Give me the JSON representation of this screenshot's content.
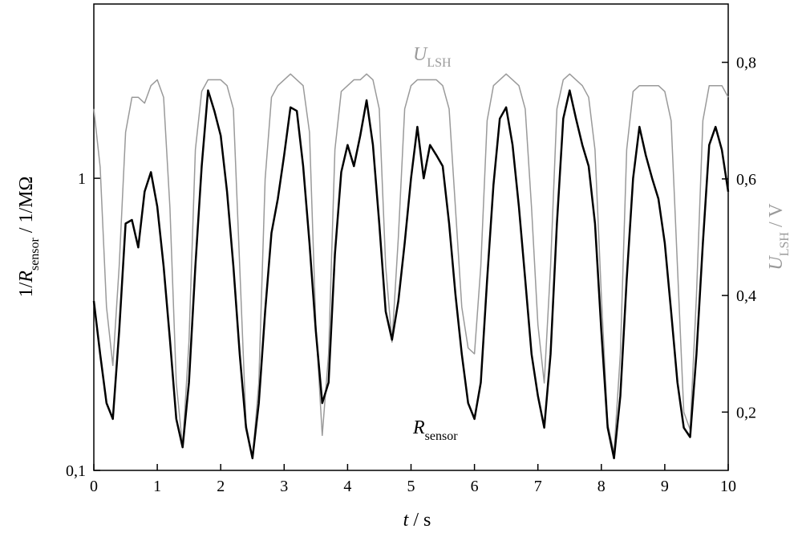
{
  "chart_data": {
    "type": "line",
    "xlabel": [
      "t",
      " / s"
    ],
    "ylabel": [
      "1/",
      "R",
      "sensor",
      " / 1/MΩ"
    ],
    "y2label": [
      "U",
      "LSH",
      " / V"
    ],
    "x": [
      0,
      0.1,
      0.2,
      0.3,
      0.4,
      0.5,
      0.6,
      0.7,
      0.8,
      0.9,
      1,
      1.1,
      1.2,
      1.3,
      1.4,
      1.5,
      1.6,
      1.7,
      1.8,
      1.9,
      2,
      2.1,
      2.2,
      2.3,
      2.4,
      2.5,
      2.6,
      2.7,
      2.8,
      2.9,
      3,
      3.1,
      3.2,
      3.3,
      3.4,
      3.5,
      3.6,
      3.7,
      3.8,
      3.9,
      4,
      4.1,
      4.2,
      4.3,
      4.4,
      4.5,
      4.6,
      4.7,
      4.8,
      4.9,
      5,
      5.1,
      5.2,
      5.3,
      5.4,
      5.5,
      5.6,
      5.7,
      5.8,
      5.9,
      6,
      6.1,
      6.2,
      6.3,
      6.4,
      6.5,
      6.6,
      6.7,
      6.8,
      6.9,
      7,
      7.1,
      7.2,
      7.3,
      7.4,
      7.5,
      7.6,
      7.7,
      7.8,
      7.9,
      8,
      8.1,
      8.2,
      8.3,
      8.4,
      8.5,
      8.6,
      8.7,
      8.8,
      8.9,
      9,
      9.1,
      9.2,
      9.3,
      9.4,
      9.5,
      9.6,
      9.7,
      9.8,
      9.9,
      10
    ],
    "series": [
      {
        "name": "U",
        "name_sub": "LSH",
        "color": "#9a9a9a",
        "axis": "y2",
        "values": [
          0.72,
          0.62,
          0.38,
          0.28,
          0.45,
          0.68,
          0.74,
          0.74,
          0.73,
          0.76,
          0.77,
          0.74,
          0.55,
          0.25,
          0.14,
          0.32,
          0.65,
          0.75,
          0.77,
          0.77,
          0.77,
          0.76,
          0.72,
          0.45,
          0.18,
          0.12,
          0.25,
          0.6,
          0.74,
          0.76,
          0.77,
          0.78,
          0.77,
          0.76,
          0.68,
          0.35,
          0.16,
          0.3,
          0.65,
          0.75,
          0.76,
          0.77,
          0.77,
          0.78,
          0.77,
          0.72,
          0.45,
          0.32,
          0.5,
          0.72,
          0.76,
          0.77,
          0.77,
          0.77,
          0.77,
          0.76,
          0.72,
          0.55,
          0.38,
          0.31,
          0.3,
          0.45,
          0.7,
          0.76,
          0.77,
          0.78,
          0.77,
          0.76,
          0.72,
          0.55,
          0.35,
          0.25,
          0.45,
          0.72,
          0.77,
          0.78,
          0.77,
          0.76,
          0.74,
          0.65,
          0.4,
          0.18,
          0.13,
          0.3,
          0.65,
          0.75,
          0.76,
          0.76,
          0.76,
          0.76,
          0.75,
          0.7,
          0.45,
          0.2,
          0.17,
          0.4,
          0.7,
          0.76,
          0.76,
          0.76,
          0.74
        ]
      },
      {
        "name": "R",
        "name_sub": "sensor",
        "color": "#000000",
        "axis": "y",
        "values": [
          0.38,
          0.25,
          0.17,
          0.15,
          0.3,
          0.7,
          0.72,
          0.58,
          0.9,
          1.05,
          0.8,
          0.5,
          0.28,
          0.15,
          0.12,
          0.2,
          0.5,
          1.1,
          2.0,
          1.7,
          1.4,
          0.9,
          0.5,
          0.25,
          0.14,
          0.11,
          0.17,
          0.35,
          0.65,
          0.85,
          1.2,
          1.75,
          1.7,
          1.1,
          0.6,
          0.3,
          0.17,
          0.2,
          0.55,
          1.05,
          1.3,
          1.1,
          1.4,
          1.85,
          1.3,
          0.7,
          0.35,
          0.28,
          0.38,
          0.6,
          1.0,
          1.5,
          1.0,
          1.3,
          1.2,
          1.1,
          0.7,
          0.4,
          0.25,
          0.17,
          0.15,
          0.2,
          0.45,
          0.95,
          1.6,
          1.75,
          1.3,
          0.8,
          0.45,
          0.25,
          0.18,
          0.14,
          0.25,
          0.7,
          1.6,
          2.0,
          1.6,
          1.3,
          1.1,
          0.7,
          0.3,
          0.14,
          0.11,
          0.18,
          0.45,
          1.0,
          1.5,
          1.2,
          1.0,
          0.85,
          0.6,
          0.35,
          0.2,
          0.14,
          0.13,
          0.25,
          0.6,
          1.3,
          1.5,
          1.25,
          0.9
        ]
      }
    ],
    "xlim": [
      0,
      10
    ],
    "xticks": [
      0,
      1,
      2,
      3,
      4,
      5,
      6,
      7,
      8,
      9,
      10
    ],
    "ylim": [
      0.1,
      3.95
    ],
    "ylog": true,
    "yticks": [
      {
        "value": 0.1,
        "label": "0,1"
      },
      1
    ],
    "y2lim": [
      0.1,
      0.9
    ],
    "y2ticks": [
      {
        "value": 0.2,
        "label": "0,2"
      },
      {
        "value": 0.4,
        "label": "0,4"
      },
      {
        "value": 0.6,
        "label": "0,6"
      },
      {
        "value": 0.8,
        "label": "0,8"
      }
    ]
  }
}
